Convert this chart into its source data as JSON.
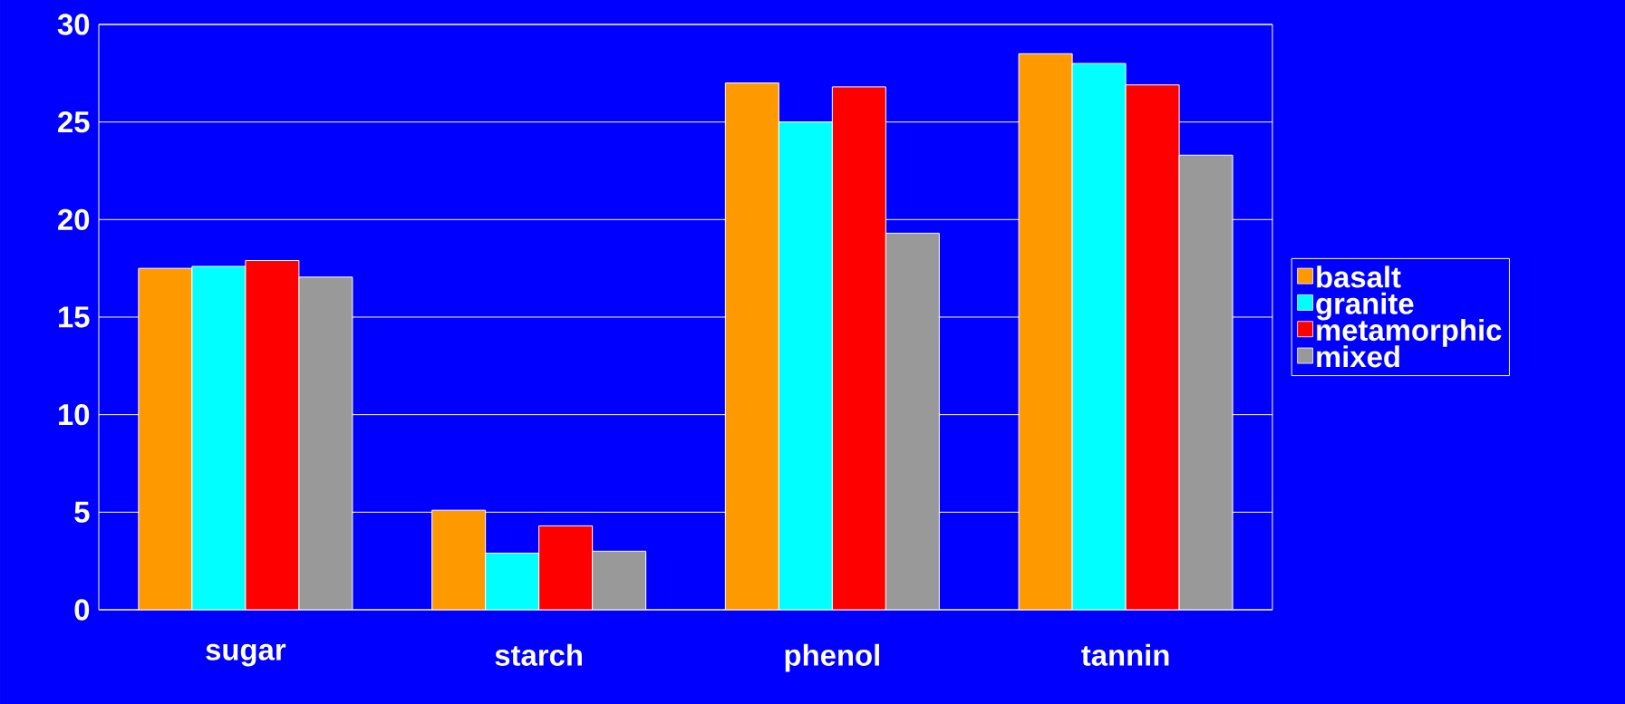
{
  "chart_data": {
    "type": "bar",
    "categories": [
      "sugar",
      "starch",
      "phenol",
      "tannin"
    ],
    "series": [
      {
        "name": "basalt",
        "color": "#ff9900",
        "values": [
          17.5,
          5.1,
          27.0,
          28.5
        ]
      },
      {
        "name": "granite",
        "color": "#00ffff",
        "values": [
          17.6,
          2.9,
          25.0,
          28.0
        ]
      },
      {
        "name": "metamorphic",
        "color": "#ff0000",
        "values": [
          17.9,
          4.3,
          26.8,
          26.9
        ]
      },
      {
        "name": "mixed",
        "color": "#999999",
        "values": [
          17.05,
          3.0,
          19.3,
          23.3
        ]
      }
    ],
    "ylim": [
      0,
      30
    ],
    "yticks": [
      0,
      5,
      10,
      15,
      20,
      25,
      30
    ],
    "grid": "y",
    "legend": "right"
  }
}
